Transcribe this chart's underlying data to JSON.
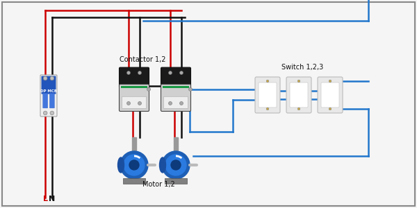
{
  "bg_color": "#f5f5f5",
  "border_color": "#888888",
  "mcb_label": "DP MCB",
  "mcb_L": "L",
  "mcb_N": "N",
  "contactor_label": "Contactor 1,2",
  "motor_label": "Motor 1,2",
  "switch_label": "Switch 1,2,3",
  "wire_red": "#cc0000",
  "wire_black": "#111111",
  "wire_blue": "#2277cc",
  "lw": 1.8
}
